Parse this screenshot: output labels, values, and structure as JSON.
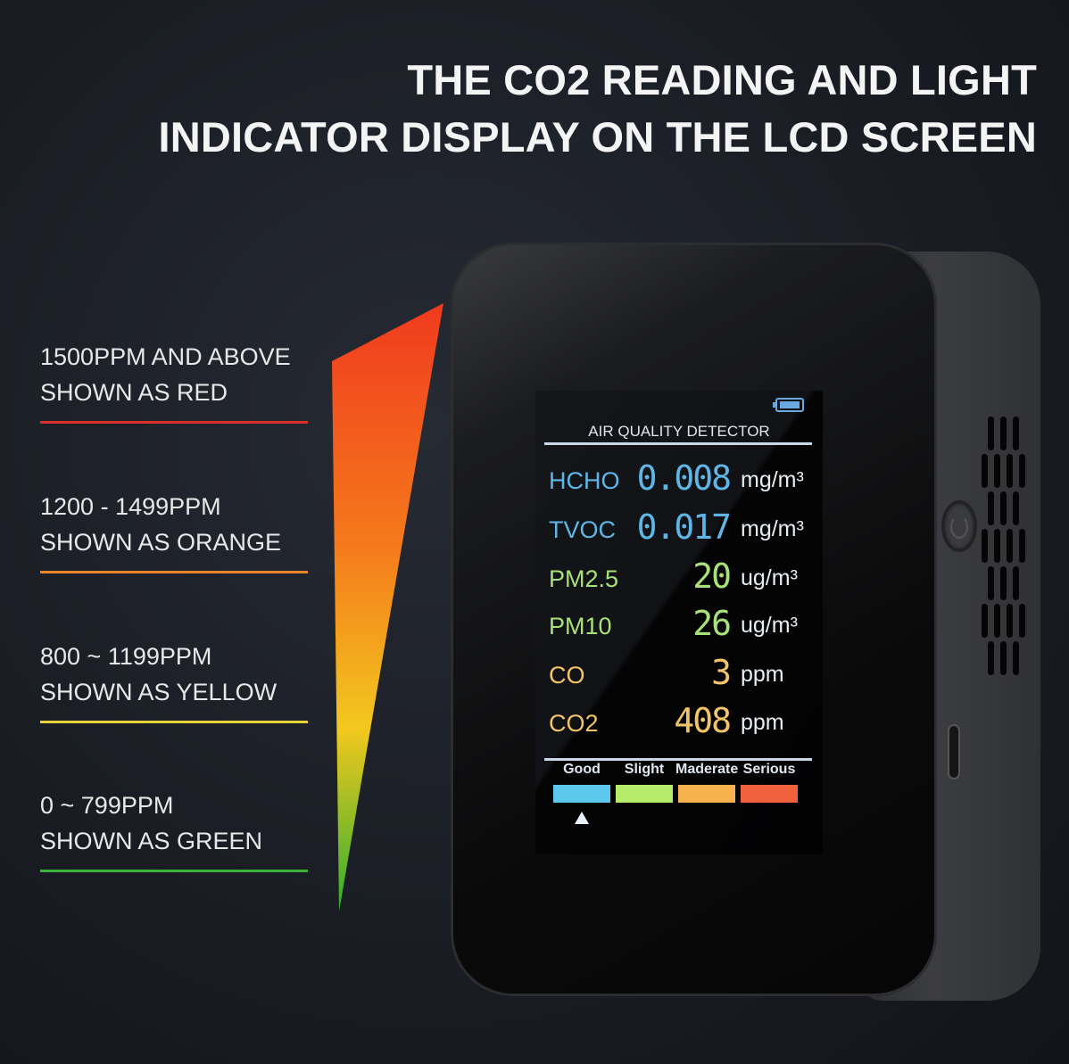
{
  "headline": {
    "line1": "THE CO2 READING AND LIGHT",
    "line2": "INDICATOR DISPLAY ON THE LCD SCREEN"
  },
  "legend": [
    {
      "range": "1500PPM AND ABOVE",
      "caption": "SHOWN AS RED",
      "color": "#d9302a"
    },
    {
      "range": "1200 - 1499PPM",
      "caption": "SHOWN AS ORANGE",
      "color": "#e9842a"
    },
    {
      "range": "800 ~ 1199PPM",
      "caption": "SHOWN AS YELLOW",
      "color": "#e8d23a"
    },
    {
      "range": "0 ~ 799PPM",
      "caption": "SHOWN AS GREEN",
      "color": "#3db23a"
    }
  ],
  "gradient_colors": [
    "#f03a1e",
    "#f57a1c",
    "#f2c81e",
    "#2fae2f"
  ],
  "lcd": {
    "title": "AIR QUALITY DETECTOR",
    "battery_icon": "battery-full-icon",
    "rows": [
      {
        "label": "HCHO",
        "value": "0.008",
        "unit": "mg/m³",
        "color": "#5fb6e6"
      },
      {
        "label": "TVOC",
        "value": "0.017",
        "unit": "mg/m³",
        "color": "#5fb6e6"
      },
      {
        "label": "PM2.5",
        "value": "20",
        "unit": "ug/m³",
        "color": "#a8e07a"
      },
      {
        "label": "PM10",
        "value": "26",
        "unit": "ug/m³",
        "color": "#a8e07a"
      },
      {
        "label": "CO",
        "value": "3",
        "unit": "ppm",
        "color": "#f2c46a"
      },
      {
        "label": "CO2",
        "value": "408",
        "unit": "ppm",
        "color": "#f2c46a"
      }
    ],
    "levels": [
      {
        "label": "Good",
        "color": "#5cc8ec"
      },
      {
        "label": "Slight",
        "color": "#b6ec6a"
      },
      {
        "label": "Maderate",
        "color": "#f6b04e"
      },
      {
        "label": "Serious",
        "color": "#f0603a"
      }
    ],
    "current_level": "Good"
  }
}
